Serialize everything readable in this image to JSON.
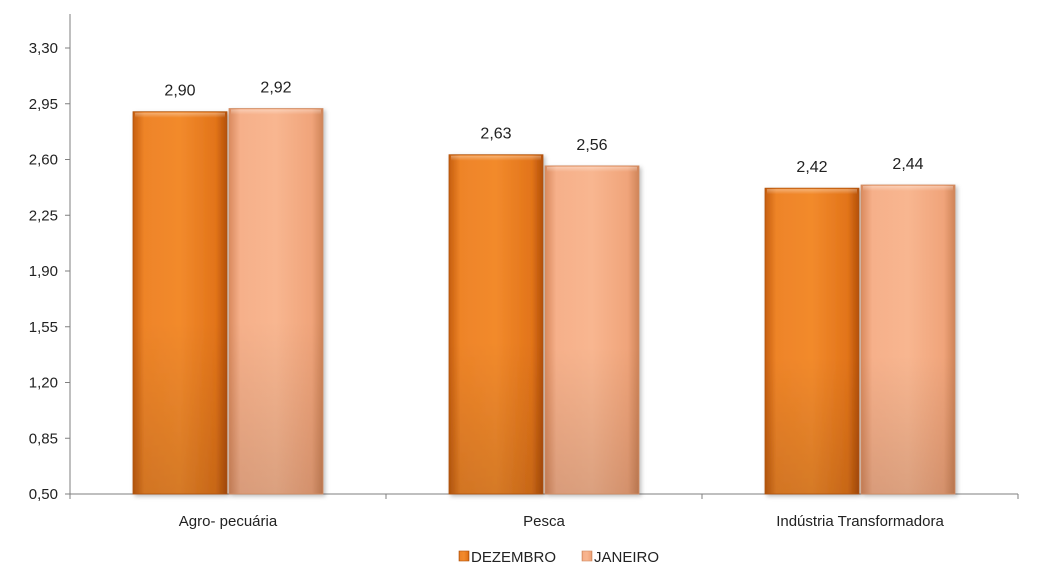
{
  "chart_data": {
    "type": "bar",
    "categories": [
      "Agro- pecuária",
      "Pesca",
      "Indústria Transformadora"
    ],
    "series": [
      {
        "name": "DEZEMBRO",
        "values": [
          2.9,
          2.63,
          2.42
        ],
        "labels": [
          "2,90",
          "2,63",
          "2,42"
        ],
        "color": "#E8781E"
      },
      {
        "name": "JANEIRO",
        "values": [
          2.92,
          2.56,
          2.44
        ],
        "labels": [
          "2,92",
          "2,56",
          "2,44"
        ],
        "color": "#F2AA7E"
      }
    ],
    "ylim": [
      0.5,
      3.3
    ],
    "yticks": [
      0.5,
      0.85,
      1.2,
      1.55,
      1.9,
      2.25,
      2.6,
      2.95,
      3.3
    ],
    "ytick_labels": [
      "0,50",
      "0,85",
      "1,20",
      "1,55",
      "1,90",
      "2,25",
      "2,60",
      "2,95",
      "3,30"
    ],
    "grid": false,
    "legend_position": "bottom"
  }
}
